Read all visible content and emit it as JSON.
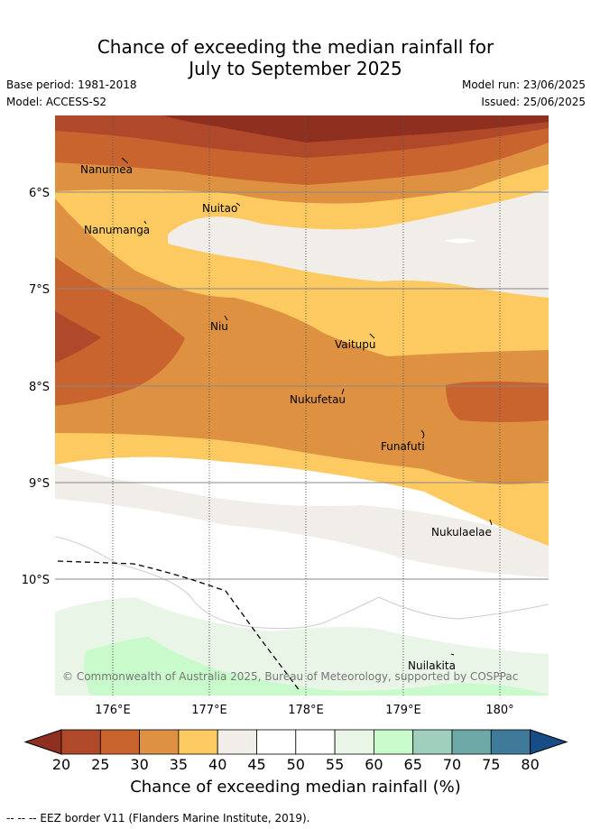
{
  "title_line1": "Chance of exceeding the median rainfall for",
  "title_line2": "July to September 2025",
  "base_period": "Base period: 1981-2018",
  "model": "Model: ACCESS-S2",
  "model_run": "Model run: 23/06/2025",
  "issued": "Issued: 25/06/2025",
  "lat_labels": [
    "6°S",
    "7°S",
    "8°S",
    "9°S",
    "10°S"
  ],
  "lon_labels": [
    "176°E",
    "177°E",
    "178°E",
    "179°E",
    "180°"
  ],
  "places": [
    "Nanumea",
    "Nuitao",
    "Nanumanga",
    "Niu",
    "Vaitupu",
    "Nukufetau",
    "Funafuti",
    "Nukulaelae",
    "Nuilakita"
  ],
  "copyright": "© Commonwealth of Australia 2025, Bureau of Meteorology, supported by COSPPac",
  "colorbar": {
    "ticks": [
      "20",
      "25",
      "30",
      "35",
      "40",
      "45",
      "50",
      "55",
      "60",
      "65",
      "70",
      "75",
      "80"
    ],
    "colors": [
      "#8e2f1f",
      "#b0492a",
      "#c9642f",
      "#df9142",
      "#fdca62",
      "#f1ede8",
      "#ffffff",
      "#ffffff",
      "#e9f5e6",
      "#c8facb",
      "#9ed0bd",
      "#6ea8a6",
      "#3f7a9b",
      "#174d86"
    ],
    "title": "Chance of exceeding median rainfall (%)"
  },
  "footer": "--  --  -- EEZ border V11 (Flanders Marine Institute, 2019).",
  "map_data": {
    "lon_range": [
      175.3,
      180.4
    ],
    "lat_range": [
      -11.2,
      -5.2
    ]
  }
}
